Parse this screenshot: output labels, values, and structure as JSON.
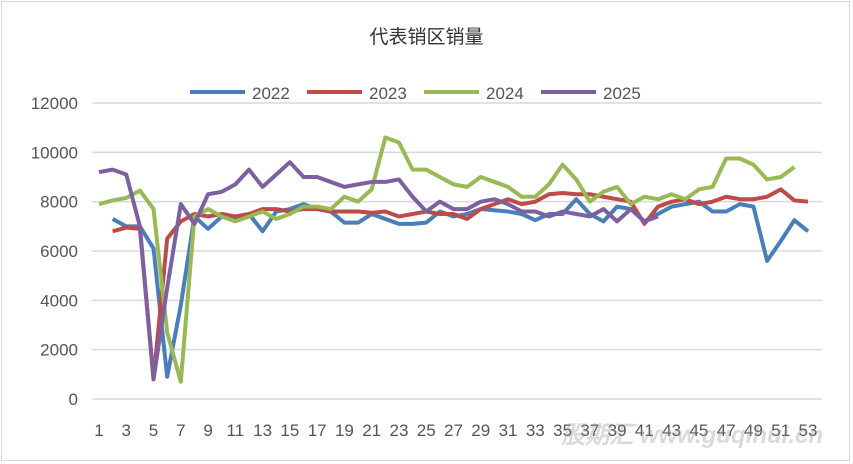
{
  "chart_data": {
    "type": "line",
    "title": "代表销区销量",
    "xlabel": "",
    "ylabel": "",
    "ylim": [
      0,
      12000
    ],
    "yticks": [
      0,
      2000,
      4000,
      6000,
      8000,
      10000,
      12000
    ],
    "x": [
      1,
      2,
      3,
      4,
      5,
      6,
      7,
      8,
      9,
      10,
      11,
      12,
      13,
      14,
      15,
      16,
      17,
      18,
      19,
      20,
      21,
      22,
      23,
      24,
      25,
      26,
      27,
      28,
      29,
      30,
      31,
      32,
      33,
      34,
      35,
      36,
      37,
      38,
      39,
      40,
      41,
      42,
      43,
      44,
      45,
      46,
      47,
      48,
      49,
      50,
      51,
      52,
      53
    ],
    "xtick_labels": [
      "1",
      "3",
      "5",
      "7",
      "9",
      "11",
      "13",
      "15",
      "17",
      "19",
      "21",
      "23",
      "25",
      "27",
      "29",
      "31",
      "33",
      "35",
      "37",
      "39",
      "41",
      "43",
      "45",
      "47",
      "49",
      "51",
      "53"
    ],
    "grid": true,
    "legend_position": "top",
    "series": [
      {
        "name": "2022",
        "color": "#4a7ebb",
        "values": [
          null,
          7300,
          7000,
          7000,
          6100,
          900,
          3800,
          7400,
          6900,
          7400,
          7300,
          7500,
          6800,
          7600,
          7700,
          7900,
          7700,
          7600,
          7150,
          7150,
          7500,
          7300,
          7100,
          7100,
          7150,
          7600,
          7400,
          7500,
          7700,
          7650,
          7600,
          7500,
          7250,
          7500,
          7500,
          8100,
          7500,
          7200,
          7800,
          7700,
          7200,
          7500,
          7800,
          7900,
          8000,
          7600,
          7600,
          7900,
          7800,
          5600,
          6400,
          7250,
          6800
        ]
      },
      {
        "name": "2023",
        "color": "#be4b48",
        "values": [
          null,
          6800,
          6950,
          6900,
          800,
          6500,
          7200,
          7500,
          7400,
          7500,
          7400,
          7500,
          7700,
          7700,
          7600,
          7700,
          7700,
          7600,
          7600,
          7600,
          7550,
          7600,
          7400,
          7500,
          7600,
          7500,
          7500,
          7300,
          7700,
          7900,
          8100,
          7900,
          8000,
          8300,
          8350,
          8300,
          8300,
          8200,
          8100,
          8000,
          7100,
          7800,
          8000,
          8100,
          7900,
          8000,
          8200,
          8100,
          8100,
          8200,
          8500,
          8050,
          8000
        ]
      },
      {
        "name": "2024",
        "color": "#98b954",
        "values": [
          7900,
          8050,
          8150,
          8450,
          7700,
          2700,
          700,
          7400,
          7700,
          7400,
          7200,
          7400,
          7600,
          7300,
          7500,
          7800,
          7800,
          7700,
          8200,
          8000,
          8500,
          10600,
          10400,
          9300,
          9300,
          9000,
          8700,
          8600,
          9000,
          8800,
          8600,
          8200,
          8200,
          8700,
          9500,
          8900,
          8000,
          8400,
          8600,
          7900,
          8200,
          8100,
          8300,
          8100,
          8500,
          8600,
          9750,
          9750,
          9500,
          8900,
          9000,
          9400,
          null
        ]
      },
      {
        "name": "2025",
        "color": "#7d60a0",
        "values": [
          9200,
          9300,
          9100,
          7000,
          800,
          4500,
          7900,
          7100,
          8300,
          8400,
          8700,
          9300,
          8600,
          9100,
          9600,
          9000,
          9000,
          8800,
          8600,
          8700,
          8800,
          8800,
          8900,
          8200,
          7600,
          8000,
          7700,
          7700,
          8000,
          8100,
          7900,
          7600,
          7600,
          7400,
          7600,
          7500,
          7400,
          7700,
          7200,
          7700,
          7200,
          7400,
          null,
          null,
          null,
          null,
          null,
          null,
          null,
          null,
          null,
          null,
          null
        ]
      }
    ]
  },
  "watermark": "股期汇 www.guqihui.cn"
}
